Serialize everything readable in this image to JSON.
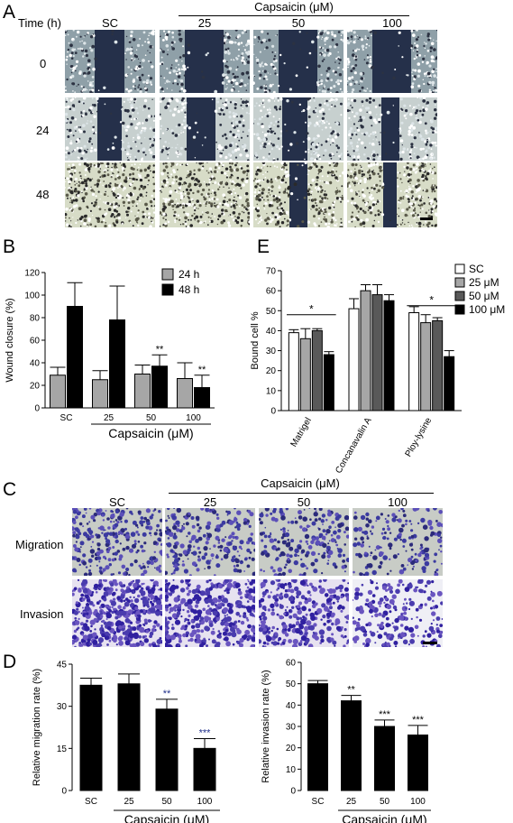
{
  "panel_a": {
    "letter": "A",
    "time_label": "Time (h)",
    "capsaicin_label": "Capsaicin (μM)",
    "columns": [
      "SC",
      "25",
      "50",
      "100"
    ],
    "rows": [
      "0",
      "24",
      "48"
    ]
  },
  "panel_c": {
    "letter": "C",
    "capsaicin_label": "Capsaicin (μM)",
    "columns": [
      "SC",
      "25",
      "50",
      "100"
    ],
    "rows": [
      "Migration",
      "Invasion"
    ]
  },
  "panel_b_letter": "B",
  "panel_e_letter": "E",
  "panel_d_letter": "D",
  "chart_data": [
    {
      "id": "B",
      "type": "bar",
      "ylabel": "Wound closure (%)",
      "xlabel": "Capsaicin (μM)",
      "categories": [
        "SC",
        "25",
        "50",
        "100"
      ],
      "ylim": [
        0,
        120
      ],
      "yticks": [
        0,
        20,
        40,
        60,
        80,
        100,
        120
      ],
      "legend": "top-right",
      "series": [
        {
          "name": "24 h",
          "color": "#a6a6a6",
          "values": [
            29,
            25,
            30,
            26
          ],
          "errors": [
            7,
            8,
            8,
            14
          ],
          "annotations": [
            "",
            "",
            "",
            ""
          ]
        },
        {
          "name": "48 h",
          "color": "#000000",
          "values": [
            90,
            78,
            37,
            18
          ],
          "errors": [
            21,
            30,
            10,
            11
          ],
          "annotations": [
            "",
            "",
            "**",
            "**"
          ]
        }
      ]
    },
    {
      "id": "E",
      "type": "bar",
      "ylabel": "Bound cell %",
      "categories": [
        "Matrigel",
        "Concanavalin A",
        "Ploy-lysine"
      ],
      "ylim": [
        0,
        70
      ],
      "yticks": [
        0,
        10,
        20,
        30,
        40,
        50,
        60,
        70
      ],
      "legend": "top-right",
      "series": [
        {
          "name": "SC",
          "color": "#ffffff",
          "values": [
            39,
            51,
            49
          ],
          "errors": [
            1.5,
            5,
            3
          ]
        },
        {
          "name": "25 μM",
          "color": "#a6a6a6",
          "values": [
            36,
            60,
            44
          ],
          "errors": [
            5,
            3,
            4
          ]
        },
        {
          "name": "50 μM",
          "color": "#595959",
          "values": [
            40,
            58,
            45
          ],
          "errors": [
            1,
            5,
            1.5
          ]
        },
        {
          "name": "100 μM",
          "color": "#000000",
          "values": [
            28,
            55,
            27
          ],
          "errors": [
            1.5,
            3,
            3
          ]
        }
      ],
      "significance": [
        {
          "group": "Matrigel",
          "label": "*"
        },
        {
          "group": "Ploy-lysine",
          "label": "*"
        }
      ]
    },
    {
      "id": "D-left",
      "type": "bar",
      "ylabel": "Relative migration rate (%)",
      "xlabel": "Capsaicin (μM)",
      "categories": [
        "SC",
        "25",
        "50",
        "100"
      ],
      "ylim": [
        0,
        45
      ],
      "yticks": [
        0,
        15,
        30,
        45
      ],
      "series": [
        {
          "color": "#000000",
          "values": [
            37.5,
            38,
            29,
            15
          ],
          "errors": [
            2.5,
            3.5,
            3.5,
            3.5
          ],
          "annotations": [
            "",
            "",
            "**",
            "***"
          ]
        }
      ]
    },
    {
      "id": "D-right",
      "type": "bar",
      "ylabel": "Relative invasion rate (%)",
      "xlabel": "Capsaicin (μM)",
      "categories": [
        "SC",
        "25",
        "50",
        "100"
      ],
      "ylim": [
        0,
        60
      ],
      "yticks": [
        0,
        10,
        20,
        30,
        40,
        50,
        60
      ],
      "series": [
        {
          "color": "#000000",
          "values": [
            50,
            42,
            30,
            26
          ],
          "errors": [
            1.5,
            2.5,
            3,
            4.5
          ],
          "annotations": [
            "",
            "**",
            "***",
            "***"
          ]
        }
      ]
    }
  ]
}
